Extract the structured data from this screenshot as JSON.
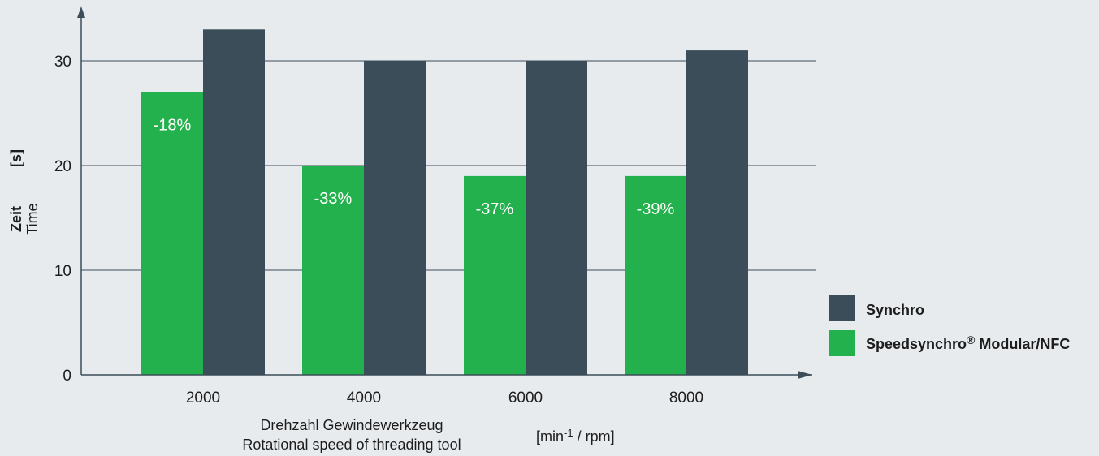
{
  "chart_data": {
    "type": "bar",
    "categories": [
      "2000",
      "4000",
      "6000",
      "8000"
    ],
    "series": [
      {
        "name": "Speedsynchro® Modular/NFC",
        "values": [
          27,
          20,
          19,
          19
        ],
        "color": "#23b14d"
      },
      {
        "name": "Synchro",
        "values": [
          33,
          30,
          30,
          31
        ],
        "color": "#3b4d59"
      }
    ],
    "bar_labels": [
      "-18%",
      "-33%",
      "-37%",
      "-39%"
    ],
    "y_ticks": [
      0,
      10,
      20,
      30
    ],
    "ylim": [
      0,
      35
    ],
    "grid": true,
    "legend_position": "right",
    "ylabel": {
      "de": "Zeit",
      "en": "Time",
      "unit": "[s]"
    },
    "xlabel": {
      "de": "Drehzahl Gewindewerkzeug",
      "en": "Rotational speed of threading tool",
      "unit_prefix": "[min",
      "unit_exp": "-1",
      "unit_suffix": " / rpm]"
    }
  },
  "legend": {
    "synchro": "Synchro",
    "speedsynchro_name": "Speedsynchro",
    "speedsynchro_mark": "®",
    "speedsynchro_rest": " Modular/NFC"
  },
  "colors": {
    "background": "#e7ebee",
    "green": "#23b14d",
    "dark": "#3b4d59",
    "axis": "#3b4d59"
  }
}
